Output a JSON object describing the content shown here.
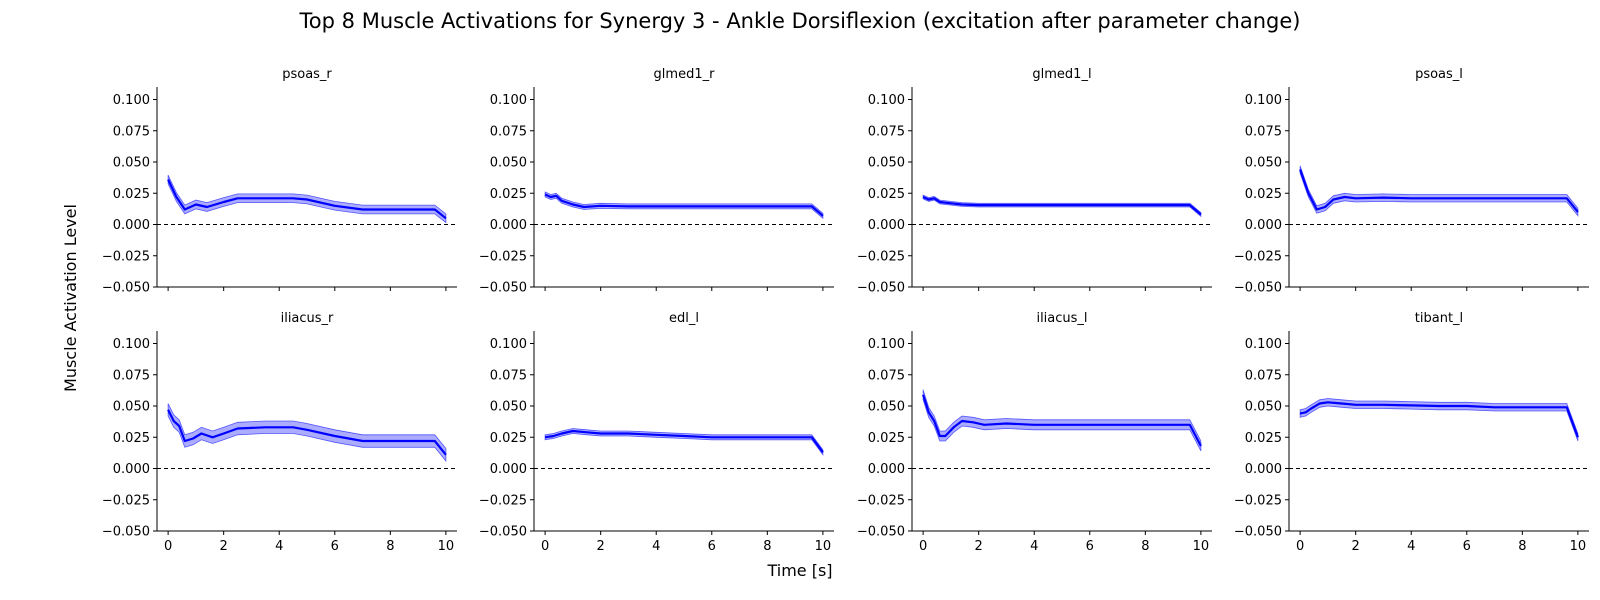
{
  "figure": {
    "title": "Top 8 Muscle Activations for Synergy 3 - Ankle Dorsiflexion (excitation after parameter change)",
    "xlabel": "Time [s]",
    "ylabel": "Muscle Activation Level"
  },
  "colors": {
    "line": "#0000ff",
    "band": "#8080ff",
    "axis": "#000000",
    "zero_line": "#000000"
  },
  "chart_data": {
    "type": "line",
    "layout": "2x4 grid of subplots, shared axes",
    "xlim": [
      -0.4,
      10.4
    ],
    "ylim": [
      -0.05,
      0.11
    ],
    "xticks": [
      0,
      2,
      4,
      6,
      8,
      10
    ],
    "xtick_labels": [
      "0",
      "2",
      "4",
      "6",
      "8",
      "10"
    ],
    "yticks": [
      -0.05,
      -0.025,
      0,
      0.025,
      0.05,
      0.075,
      0.1
    ],
    "ytick_labels": [
      "−0.050",
      "−0.025",
      "0.000",
      "0.025",
      "0.050",
      "0.075",
      "0.100"
    ],
    "reference_line": {
      "y": 0,
      "style": "dashed"
    },
    "subplots": [
      {
        "title": "psoas_r",
        "x": [
          0,
          0.3,
          0.6,
          1.0,
          1.4,
          2.0,
          2.5,
          3.5,
          4.5,
          5.0,
          6.0,
          7.0,
          8.0,
          9.0,
          9.6,
          10
        ],
        "y": [
          0.036,
          0.022,
          0.012,
          0.016,
          0.014,
          0.018,
          0.021,
          0.021,
          0.021,
          0.02,
          0.015,
          0.012,
          0.012,
          0.012,
          0.012,
          0.005
        ],
        "band": 0.0035
      },
      {
        "title": "glmed1_r",
        "x": [
          0,
          0.2,
          0.4,
          0.6,
          1.0,
          1.4,
          2.0,
          3.0,
          4.0,
          5.0,
          6.0,
          7.0,
          8.0,
          9.0,
          9.6,
          10
        ],
        "y": [
          0.024,
          0.022,
          0.023,
          0.019,
          0.016,
          0.014,
          0.015,
          0.0145,
          0.0145,
          0.0145,
          0.0145,
          0.0145,
          0.0145,
          0.0145,
          0.0145,
          0.007
        ],
        "band": 0.002
      },
      {
        "title": "glmed1_l",
        "x": [
          0,
          0.2,
          0.4,
          0.6,
          1.0,
          1.4,
          2.0,
          3.0,
          4.0,
          5.0,
          6.0,
          7.0,
          8.0,
          9.0,
          9.6,
          10
        ],
        "y": [
          0.022,
          0.02,
          0.021,
          0.018,
          0.017,
          0.016,
          0.0155,
          0.0155,
          0.0155,
          0.0155,
          0.0155,
          0.0155,
          0.0155,
          0.0155,
          0.0155,
          0.008
        ],
        "band": 0.0015
      },
      {
        "title": "psoas_l",
        "x": [
          0,
          0.3,
          0.6,
          0.9,
          1.2,
          1.6,
          2.0,
          3.0,
          4.0,
          5.0,
          6.0,
          7.0,
          8.0,
          9.0,
          9.6,
          10
        ],
        "y": [
          0.044,
          0.025,
          0.012,
          0.014,
          0.02,
          0.022,
          0.021,
          0.0215,
          0.021,
          0.021,
          0.021,
          0.021,
          0.021,
          0.021,
          0.021,
          0.01
        ],
        "band": 0.003
      },
      {
        "title": "iliacus_r",
        "x": [
          0,
          0.2,
          0.4,
          0.6,
          0.9,
          1.2,
          1.6,
          2.0,
          2.5,
          3.5,
          4.5,
          5.0,
          6.0,
          7.0,
          8.0,
          9.0,
          9.6,
          10
        ],
        "y": [
          0.047,
          0.038,
          0.034,
          0.022,
          0.024,
          0.028,
          0.025,
          0.028,
          0.032,
          0.033,
          0.033,
          0.031,
          0.026,
          0.022,
          0.022,
          0.022,
          0.022,
          0.011
        ],
        "band": 0.005
      },
      {
        "title": "edl_l",
        "x": [
          0,
          0.3,
          0.6,
          1.0,
          1.5,
          2.0,
          3.0,
          4.0,
          5.0,
          6.0,
          7.0,
          8.0,
          9.0,
          9.6,
          10
        ],
        "y": [
          0.025,
          0.026,
          0.028,
          0.03,
          0.029,
          0.028,
          0.028,
          0.027,
          0.026,
          0.025,
          0.025,
          0.025,
          0.025,
          0.025,
          0.013
        ],
        "band": 0.002
      },
      {
        "title": "iliacus_l",
        "x": [
          0,
          0.2,
          0.4,
          0.6,
          0.8,
          1.1,
          1.4,
          1.8,
          2.2,
          3.0,
          4.0,
          5.0,
          6.0,
          7.0,
          8.0,
          9.0,
          9.6,
          10
        ],
        "y": [
          0.059,
          0.045,
          0.038,
          0.026,
          0.026,
          0.033,
          0.038,
          0.037,
          0.035,
          0.036,
          0.035,
          0.035,
          0.035,
          0.035,
          0.035,
          0.035,
          0.035,
          0.018
        ],
        "band": 0.004
      },
      {
        "title": "tibant_l",
        "x": [
          0,
          0.2,
          0.4,
          0.7,
          1.0,
          1.5,
          2.0,
          3.0,
          4.0,
          5.0,
          6.0,
          7.0,
          8.0,
          9.0,
          9.6,
          10
        ],
        "y": [
          0.044,
          0.045,
          0.048,
          0.052,
          0.053,
          0.052,
          0.051,
          0.051,
          0.0505,
          0.05,
          0.05,
          0.049,
          0.049,
          0.049,
          0.049,
          0.025
        ],
        "band": 0.003
      }
    ]
  }
}
